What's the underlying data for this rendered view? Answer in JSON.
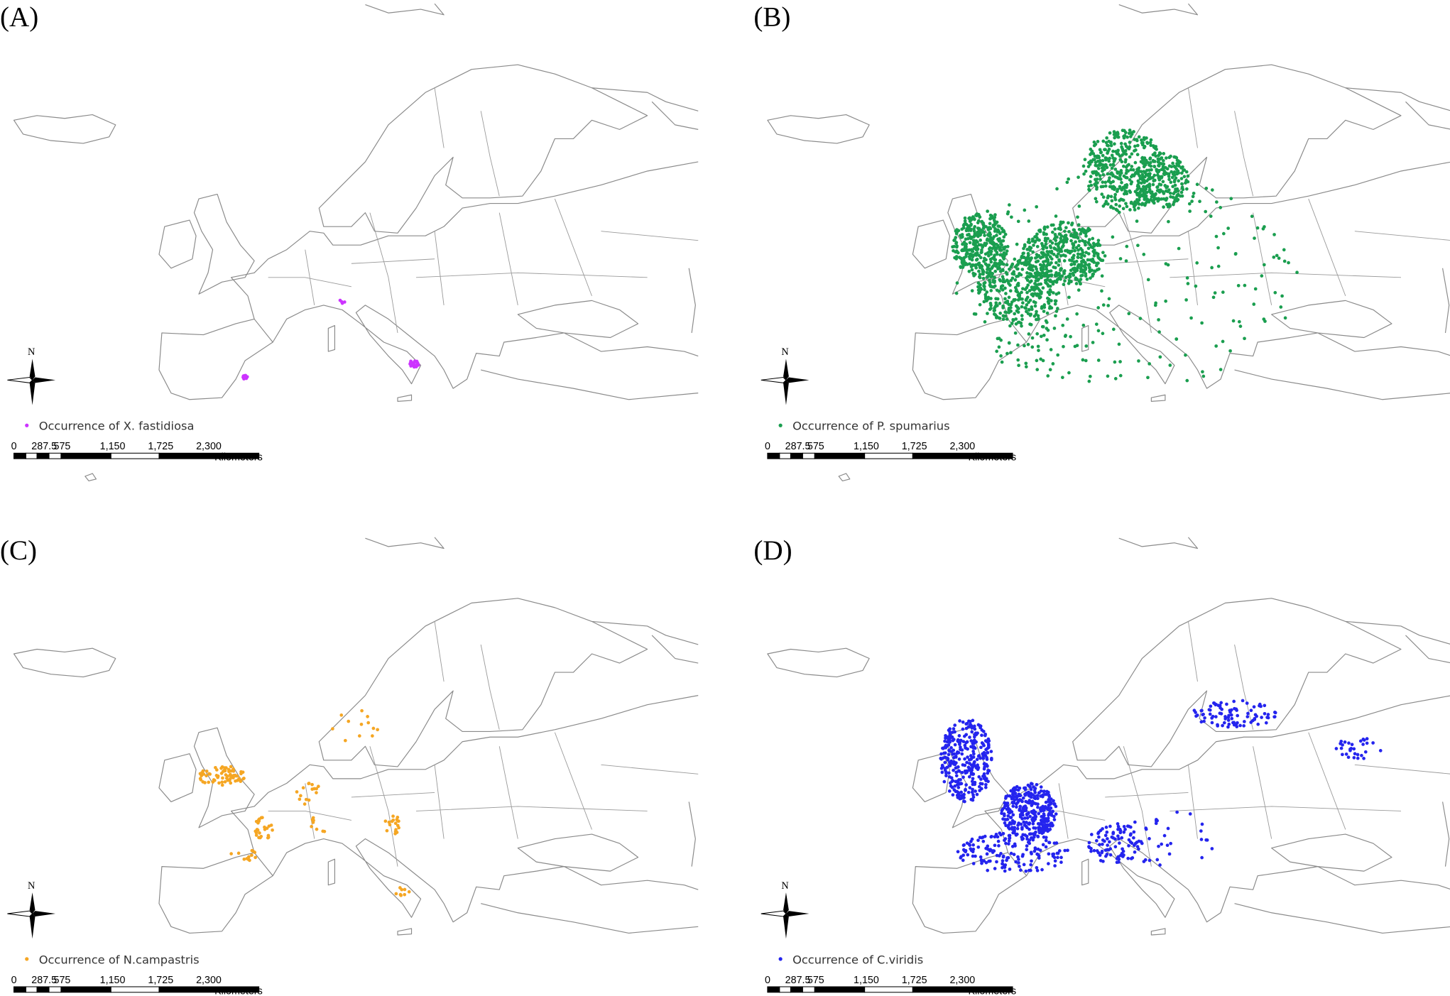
{
  "panels": [
    {
      "label": "(A)",
      "legend": "Occurrence of X. fastidiosa",
      "color": "#cc33ff",
      "north": "N",
      "scale_labels": [
        "0",
        "287.5",
        "575",
        "1,150",
        "1,725",
        "2,300"
      ],
      "scale_unit": "Kilometers"
    },
    {
      "label": "(B)",
      "legend": "Occurrence of P. spumarius",
      "color": "#1a9e4f",
      "north": "N",
      "scale_labels": [
        "0",
        "287.5",
        "575",
        "1,150",
        "1,725",
        "2,300"
      ],
      "scale_unit": "Kilometers"
    },
    {
      "label": "(C)",
      "legend": "Occurrence of N.campastris",
      "color": "#f5a623",
      "north": "N",
      "scale_labels": [
        "0",
        "287.5",
        "575",
        "1,150",
        "1,725",
        "2,300"
      ],
      "scale_unit": "Kilometers"
    },
    {
      "label": "(D)",
      "legend": "Occurrence of C.viridis",
      "color": "#2424ee",
      "north": "N",
      "scale_labels": [
        "0",
        "287.5",
        "575",
        "1,150",
        "1,725",
        "2,300"
      ],
      "scale_unit": "Kilometers"
    }
  ]
}
